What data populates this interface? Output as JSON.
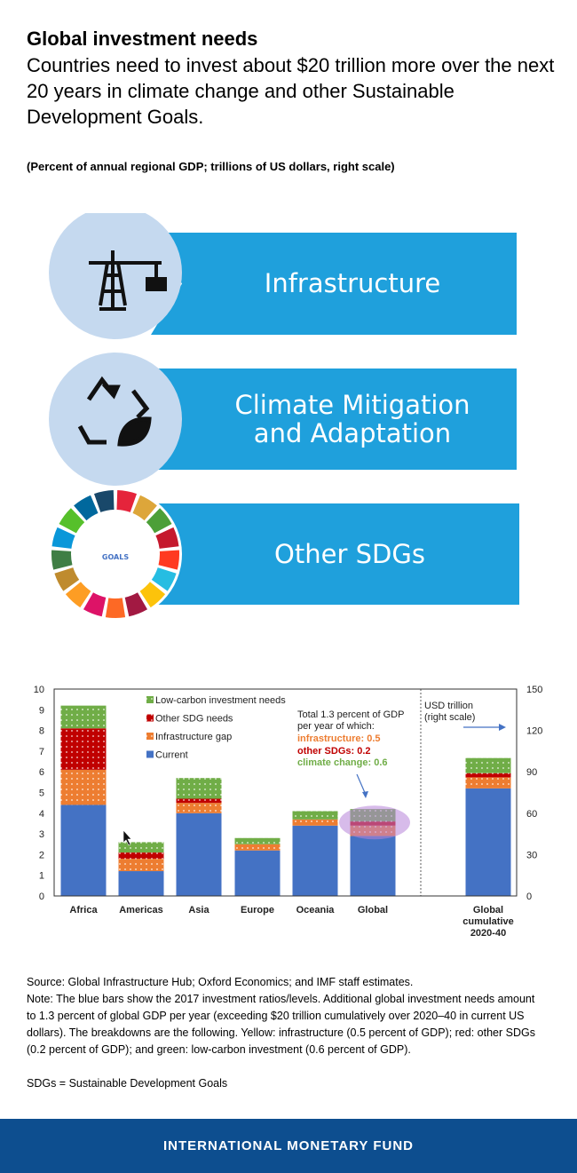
{
  "header": {
    "title": "Global investment needs",
    "subtitle": "Countries need to invest about $20 trillion more over the next 20 years in climate change and other Sustainable Development Goals.",
    "units": "(Percent of annual regional GDP; trillions of US dollars, right scale)"
  },
  "banners": [
    {
      "label": "Infrastructure",
      "icon": "crane-icon"
    },
    {
      "label_line1": "Climate Mitigation",
      "label_line2": "and Adaptation",
      "icon": "recycle-leaf-icon"
    },
    {
      "label": "Other SDGs",
      "icon": "sdg-wheel-icon",
      "logo_text": "GOALS"
    }
  ],
  "colors": {
    "banner": "#1fa0dc",
    "icon_circle": "#c5d9ef",
    "current": "#4472c4",
    "infrastructure": "#ed7d31",
    "other_sdg": "#c00000",
    "low_carbon": "#70ad47",
    "highlight": "#b784d8",
    "footer": "#0d4e8f"
  },
  "chart_data": {
    "type": "bar",
    "stacked": true,
    "categories": [
      "Africa",
      "Americas",
      "Asia",
      "Europe",
      "Oceania",
      "Global",
      "Global cumulative 2020-40"
    ],
    "category_label_lines": [
      [
        "Africa"
      ],
      [
        "Americas"
      ],
      [
        "Asia"
      ],
      [
        "Europe"
      ],
      [
        "Oceania"
      ],
      [
        "Global"
      ],
      [
        "Global",
        "cumulative",
        "2020-40"
      ]
    ],
    "series": [
      {
        "name": "Current",
        "values": [
          4.4,
          1.2,
          4.0,
          2.2,
          3.4,
          2.9,
          78
        ]
      },
      {
        "name": "Infrastructure gap",
        "values": [
          1.7,
          0.6,
          0.5,
          0.3,
          0.3,
          0.5,
          8
        ]
      },
      {
        "name": "Other SDG needs",
        "values": [
          2.0,
          0.3,
          0.2,
          0.0,
          0.0,
          0.2,
          3
        ]
      },
      {
        "name": "Low-carbon investment needs",
        "values": [
          1.1,
          0.5,
          1.0,
          0.3,
          0.4,
          0.6,
          11
        ]
      }
    ],
    "legend": [
      "Low-carbon investment needs",
      "Other SDG needs",
      "Infrastructure gap",
      "Current"
    ],
    "y_left": {
      "min": 0,
      "max": 10,
      "ticks": [
        "0",
        "1",
        "2",
        "3",
        "4",
        "5",
        "6",
        "7",
        "8",
        "9",
        "10"
      ]
    },
    "y_right": {
      "min": 0,
      "max": 150,
      "ticks": [
        "0",
        "30",
        "60",
        "90",
        "120",
        "150"
      ],
      "label_line1": "USD trillion",
      "label_line2": "(right scale)"
    },
    "right_scale_categories": [
      "Global cumulative 2020-40"
    ],
    "annotation": {
      "line1": "Total 1.3 percent of GDP",
      "line2": "per year of which:",
      "infrastructure": "infrastructure: 0.5",
      "other": "other SDGs: 0.2",
      "climate": "climate change: 0.6"
    }
  },
  "notes": {
    "source": "Source: Global Infrastructure Hub; Oxford Economics; and IMF staff estimates.",
    "note": "Note: The blue bars show the 2017 investment ratios/levels. Additional global investment needs amount to 1.3 percent of global GDP per year (exceeding $20 trillion cumulatively over 2020–40 in current US dollars). The breakdowns are the following. Yellow: infrastructure (0.5 percent of GDP); red: other SDGs (0.2 percent of GDP); and green: low-carbon investment (0.6 percent of GDP).",
    "abbrev": "SDGs = Sustainable Development Goals"
  },
  "footer": {
    "org": "INTERNATIONAL MONETARY FUND"
  }
}
